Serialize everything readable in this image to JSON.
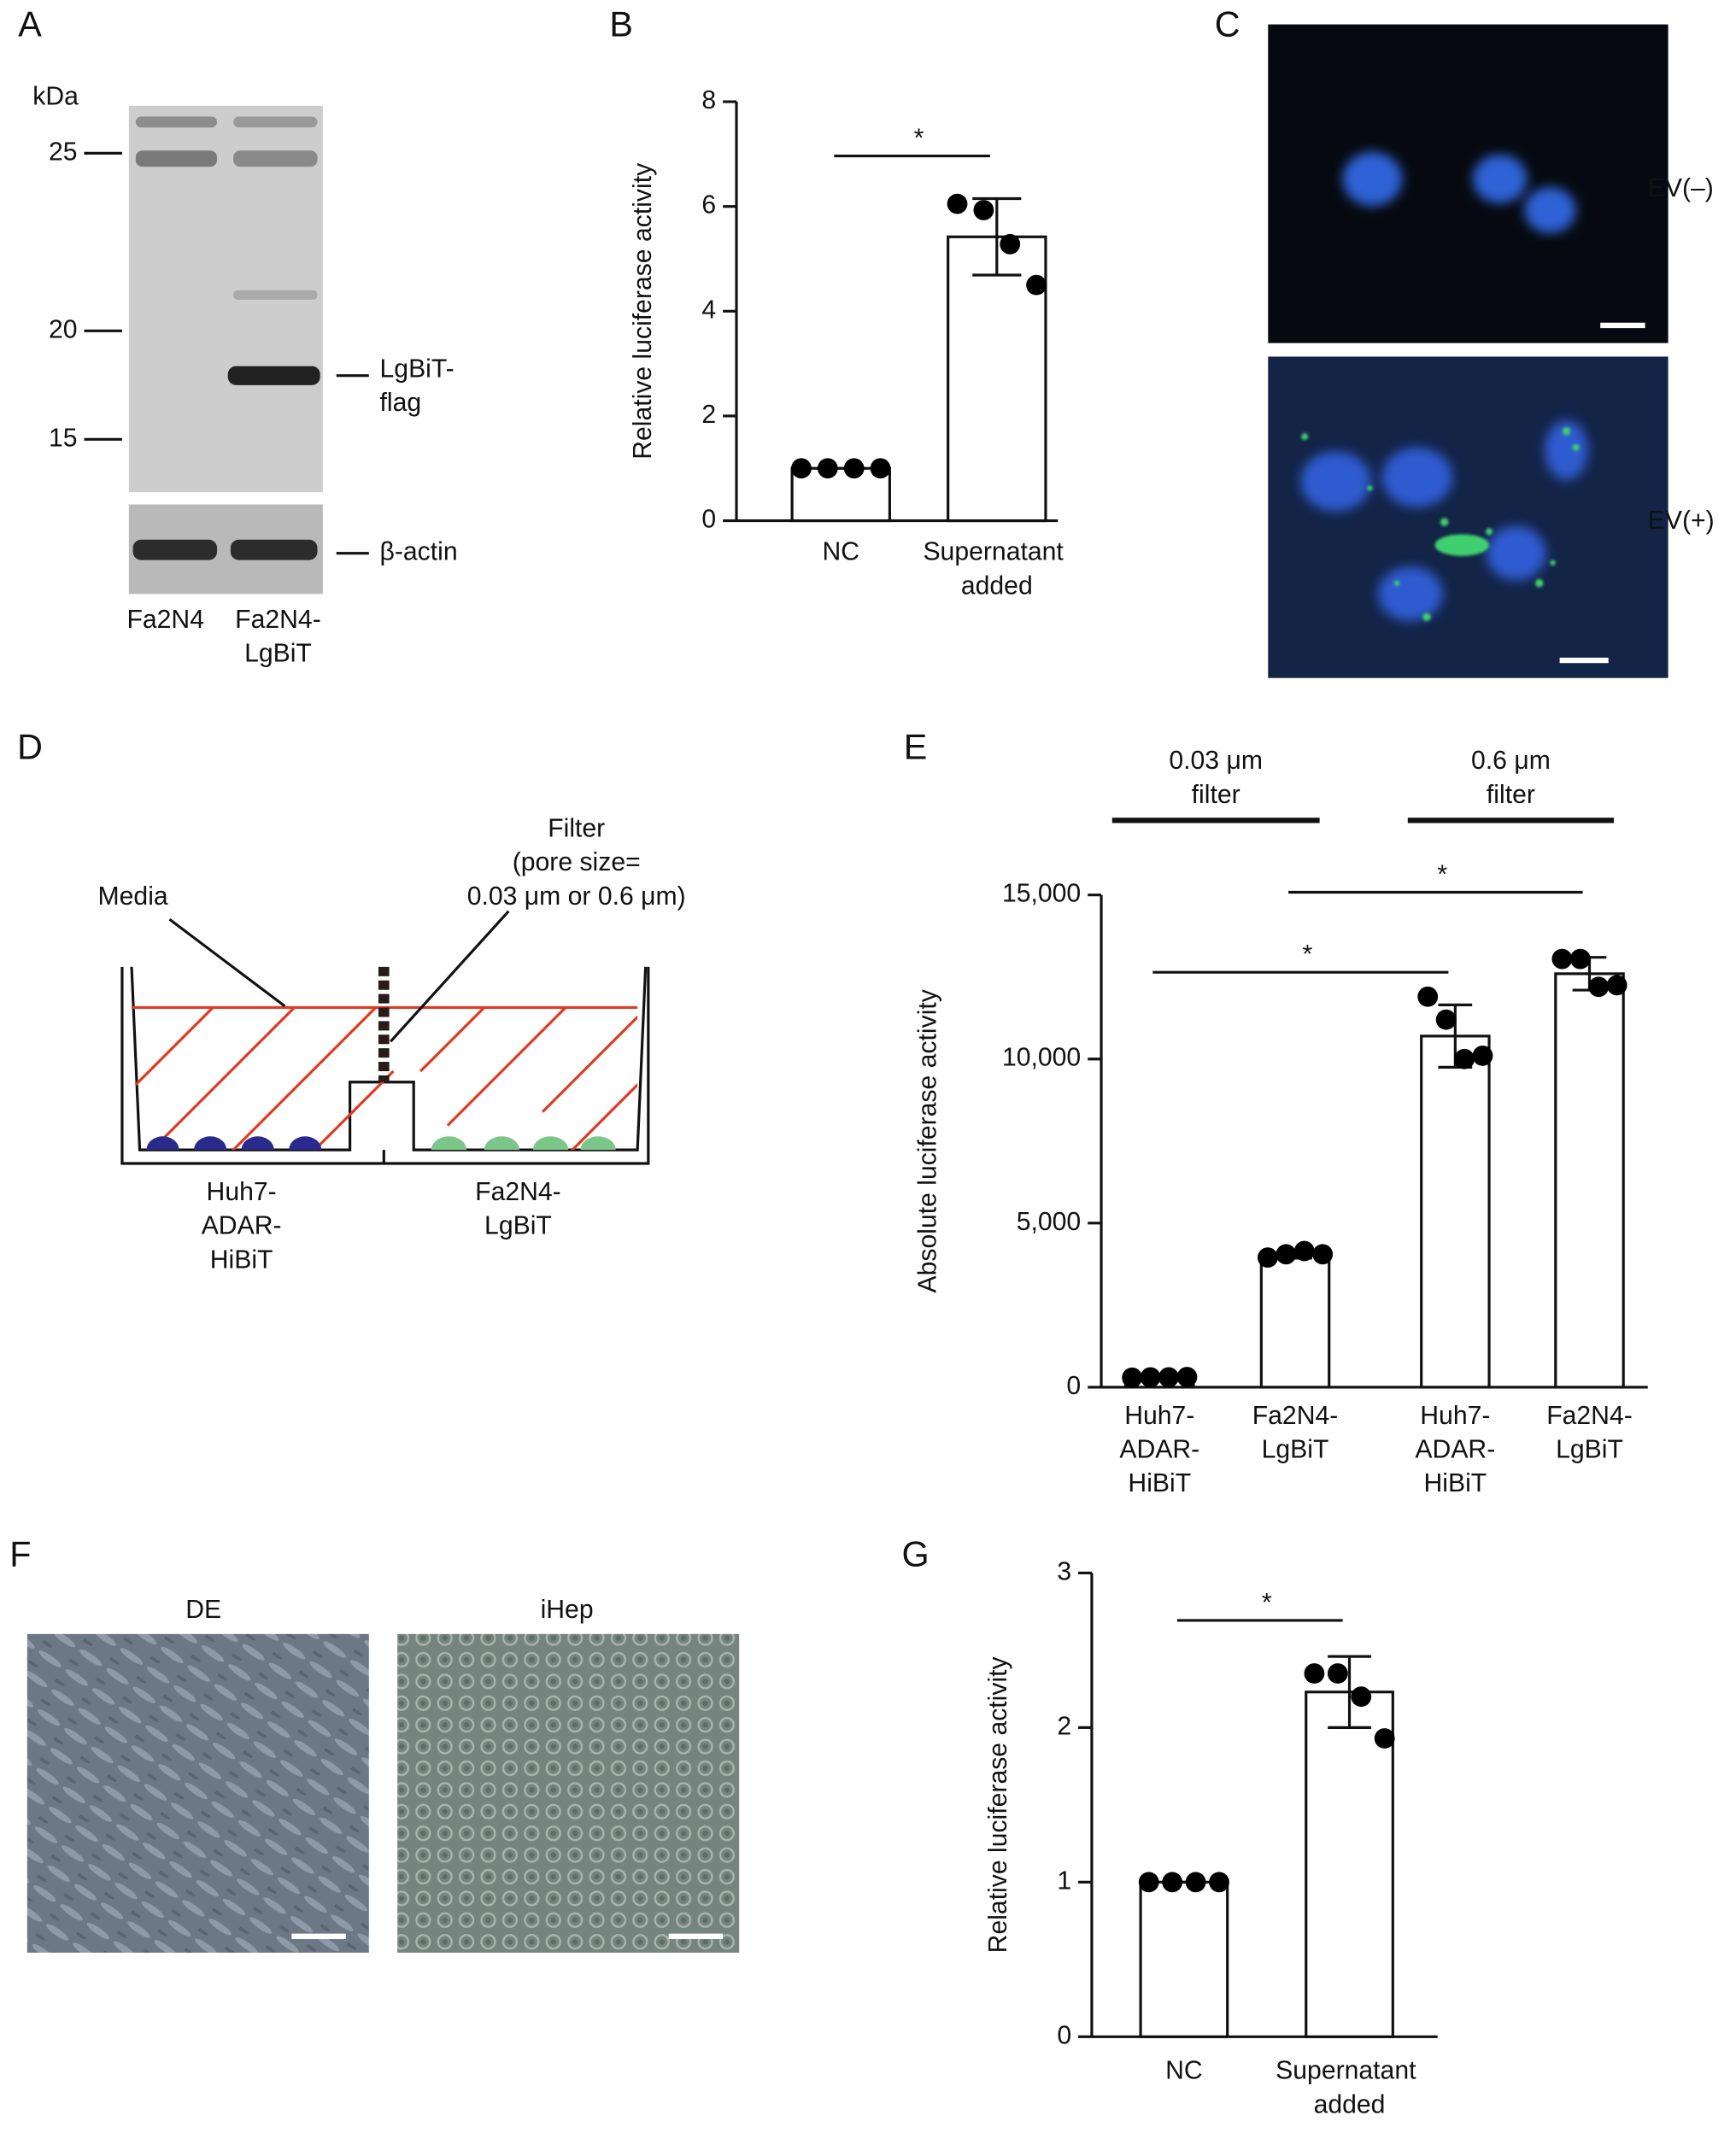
{
  "blot": {
    "panel": "A",
    "unit": "kDa",
    "markers": [
      25,
      20,
      15
    ],
    "band_label": "LgBiT-flag",
    "loading_label": "β-actin",
    "lanes": [
      "Fa2N4",
      "Fa2N4-LgBiT"
    ]
  },
  "chart_data": [
    {
      "type": "bar",
      "panel": "B",
      "ylabel": "Relative luciferase activity",
      "categories": [
        "NC",
        "Supernatant added"
      ],
      "values": [
        1,
        5.42
      ],
      "errors": [
        0,
        0.73
      ],
      "points": [
        [
          1,
          1,
          1,
          1
        ],
        [
          6.05,
          5.93,
          5.28,
          4.5
        ]
      ],
      "color": "#ffffff",
      "point_color": "#000000",
      "ylim": [
        0,
        8
      ],
      "yticks": [
        0,
        2,
        4,
        6,
        8
      ],
      "significance": [
        {
          "pair": [
            0,
            1
          ],
          "label": "*"
        }
      ]
    },
    {
      "type": "bar",
      "panel": "E",
      "ylabel": "Absolute luciferase activity",
      "categories": [
        "Huh7-ADAR-HiBiT",
        "Fa2N4-LgBiT",
        "Huh7-ADAR-HiBiT",
        "Fa2N4-LgBiT"
      ],
      "values": [
        300,
        4050,
        10700,
        12600
      ],
      "errors": [
        30,
        120,
        950,
        500
      ],
      "points": [
        [
          290,
          300,
          300,
          310
        ],
        [
          3950,
          4050,
          4150,
          4050
        ],
        [
          11900,
          11200,
          10000,
          10100
        ],
        [
          13050,
          13050,
          12200,
          12250
        ]
      ],
      "color": "#ffffff",
      "point_color": "#000000",
      "ylim": [
        0,
        15000
      ],
      "yticks": [
        0,
        {
          "value": 5000,
          "label": "5,000"
        },
        {
          "value": 10000,
          "label": "10,000"
        },
        {
          "value": 15000,
          "label": "15,000"
        }
      ],
      "groups": [
        {
          "lines": [
            "0.03 μm",
            "filter"
          ],
          "span": [
            0,
            1
          ]
        },
        {
          "lines": [
            "0.6 μm",
            "filter"
          ],
          "span": [
            2,
            3
          ]
        }
      ],
      "significance": [
        {
          "pair": [
            1,
            3
          ],
          "label": "*"
        },
        {
          "pair": [
            0,
            2
          ],
          "label": "*"
        }
      ]
    },
    {
      "type": "bar",
      "panel": "G",
      "ylabel": "Relative luciferase activity",
      "categories": [
        "NC",
        "Supernatant added"
      ],
      "values": [
        1,
        2.23
      ],
      "errors": [
        0,
        0.23
      ],
      "points": [
        [
          1,
          1,
          1,
          1
        ],
        [
          2.35,
          2.35,
          2.2,
          1.93
        ]
      ],
      "color": "#ffffff",
      "point_color": "#000000",
      "ylim": [
        0,
        3
      ],
      "yticks": [
        0,
        1,
        2,
        3
      ],
      "significance": [
        {
          "pair": [
            0,
            1
          ],
          "label": "*"
        }
      ]
    }
  ],
  "fluorescence": {
    "panel": "C",
    "labels": [
      "EV(–)",
      "EV(+)"
    ]
  },
  "diagram": {
    "panel": "D",
    "media": "Media",
    "filter": [
      "Filter",
      "(pore size=",
      "0.03 μm or 0.6 μm)"
    ],
    "wells": [
      "Huh7-ADAR-HiBiT",
      "Fa2N4-LgBiT"
    ]
  },
  "micrographs": {
    "panel": "F",
    "labels": [
      "DE",
      "iHep"
    ]
  }
}
